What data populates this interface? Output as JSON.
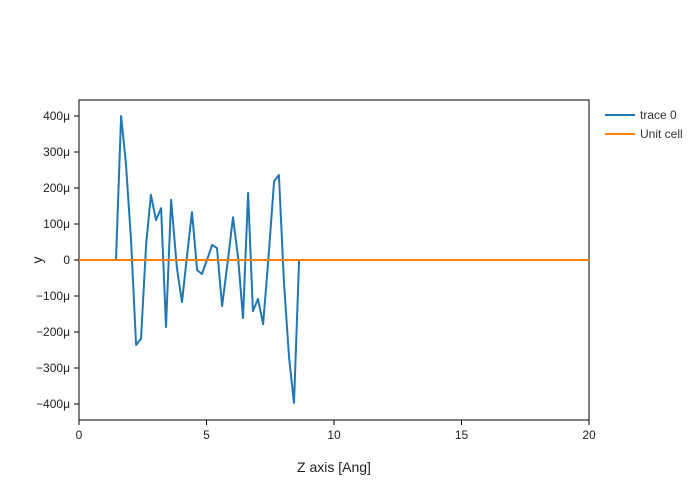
{
  "chart_data": {
    "type": "line",
    "title": "",
    "xlabel": "Z axis [Ang]",
    "ylabel": "y",
    "xlim": [
      0,
      20
    ],
    "ylim": [
      -440,
      440
    ],
    "y_unit_suffix": "μ",
    "x_ticks": [
      0,
      5,
      10,
      15,
      20
    ],
    "x_tick_labels": [
      "0",
      "5",
      "10",
      "15",
      "20"
    ],
    "y_ticks": [
      400,
      300,
      200,
      100,
      0,
      -100,
      -200,
      -300,
      -400
    ],
    "y_tick_labels": [
      "400μ",
      "300μ",
      "200μ",
      "100μ",
      "0",
      "−100μ",
      "−200μ",
      "−300μ",
      "−400μ"
    ],
    "grid": false,
    "legend_position": "right-top",
    "series": [
      {
        "name": "trace 0",
        "color": "#1f77b4",
        "x": [
          1.45,
          1.65,
          1.84,
          2.04,
          2.24,
          2.43,
          2.63,
          2.82,
          3.02,
          3.22,
          3.41,
          3.61,
          3.84,
          4.04,
          4.24,
          4.43,
          4.63,
          4.82,
          5.02,
          5.22,
          5.41,
          5.61,
          5.84,
          6.04,
          6.24,
          6.43,
          6.63,
          6.82,
          7.02,
          7.22,
          7.41,
          7.65,
          7.84,
          8.04,
          8.24,
          8.43,
          8.63
        ],
        "y": [
          0,
          400,
          269,
          56,
          -236,
          -219,
          42,
          181,
          111,
          144,
          -186,
          167,
          -22,
          -117,
          14,
          133,
          -28,
          -39,
          0,
          42,
          33,
          -128,
          0,
          119,
          6,
          -161,
          186,
          -142,
          -108,
          -178,
          -11,
          219,
          236,
          -64,
          -272,
          -397,
          0
        ]
      },
      {
        "name": "Unit cell",
        "color": "#ff7f0e",
        "x": [
          0,
          20
        ],
        "y": [
          0,
          0
        ]
      }
    ]
  },
  "legend": {
    "items": [
      {
        "label": "trace 0",
        "color": "#1f77b4"
      },
      {
        "label": "Unit cell",
        "color": "#ff7f0e"
      }
    ]
  },
  "axes": {
    "xlabel": "Z axis [Ang]",
    "ylabel": "y"
  }
}
